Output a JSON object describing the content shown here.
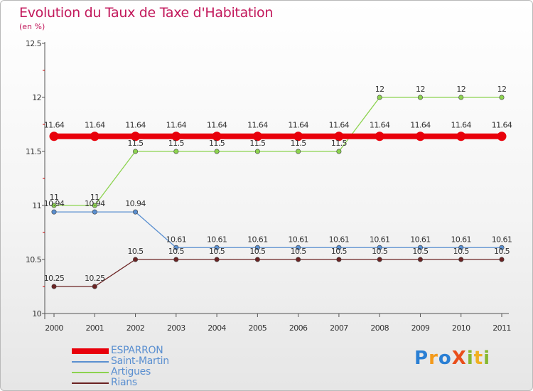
{
  "header": {
    "title": "Evolution du Taux de Taxe d'Habitation",
    "subtitle": "(en %)"
  },
  "logo": {
    "text": "ProXiti",
    "letters": [
      "P",
      "r",
      "o",
      "X",
      "i",
      "t",
      "i"
    ],
    "colors": [
      "#2a7fd4",
      "#f39a1b",
      "#2a7fd4",
      "#e94e1b",
      "#86b830",
      "#f0b020",
      "#86b830"
    ]
  },
  "chart_data": {
    "type": "line",
    "title": "Evolution du Taux de Taxe d'Habitation",
    "ylabel": "(en %)",
    "xlabel": "",
    "x": [
      "2000",
      "2001",
      "2002",
      "2003",
      "2004",
      "2005",
      "2006",
      "2007",
      "2008",
      "2009",
      "2010",
      "2011"
    ],
    "ylim": [
      10,
      12.5
    ],
    "yticks": [
      "10",
      "10.5",
      "11",
      "11.5",
      "12",
      "12.5"
    ],
    "ytick_values": [
      10,
      10.5,
      11,
      11.5,
      12,
      12.5
    ],
    "legend_position": "bottom-left",
    "series": [
      {
        "name": "ESPARRON",
        "color": "#e8000b",
        "values": [
          11.64,
          11.64,
          11.64,
          11.64,
          11.64,
          11.64,
          11.64,
          11.64,
          11.64,
          11.64,
          11.64,
          11.64
        ]
      },
      {
        "name": "Saint-Martin",
        "color": "#5a8fd0",
        "values": [
          10.94,
          10.94,
          10.94,
          10.61,
          10.61,
          10.61,
          10.61,
          10.61,
          10.61,
          10.61,
          10.61,
          10.61
        ]
      },
      {
        "name": "Artigues",
        "color": "#8cd34f",
        "values": [
          11,
          11,
          11.5,
          11.5,
          11.5,
          11.5,
          11.5,
          11.5,
          12,
          12,
          12,
          12
        ]
      },
      {
        "name": "Rians",
        "color": "#6b2323",
        "values": [
          10.25,
          10.25,
          10.5,
          10.5,
          10.5,
          10.5,
          10.5,
          10.5,
          10.5,
          10.5,
          10.5,
          10.5
        ]
      }
    ],
    "labels": {
      "ESPARRON": [
        "11.64",
        "11.64",
        "11.64",
        "11.64",
        "11.64",
        "11.64",
        "11.64",
        "11.64",
        "11.64",
        "11.64",
        "11.64",
        "11.64"
      ],
      "Saint-Martin": [
        "10.94",
        "10.94",
        "10.94",
        "10.61",
        "10.61",
        "10.61",
        "10.61",
        "10.61",
        "10.61",
        "10.61",
        "10.61",
        "10.61"
      ],
      "Artigues": [
        "11",
        "11",
        "11.5",
        "11.5",
        "11.5",
        "11.5",
        "11.5",
        "11.5",
        "12",
        "12",
        "12",
        "12"
      ],
      "Rians": [
        "10.25",
        "10.25",
        "10.5",
        "10.5",
        "10.5",
        "10.5",
        "10.5",
        "10.5",
        "10.5",
        "10.5",
        "10.5",
        "10.5"
      ]
    }
  }
}
